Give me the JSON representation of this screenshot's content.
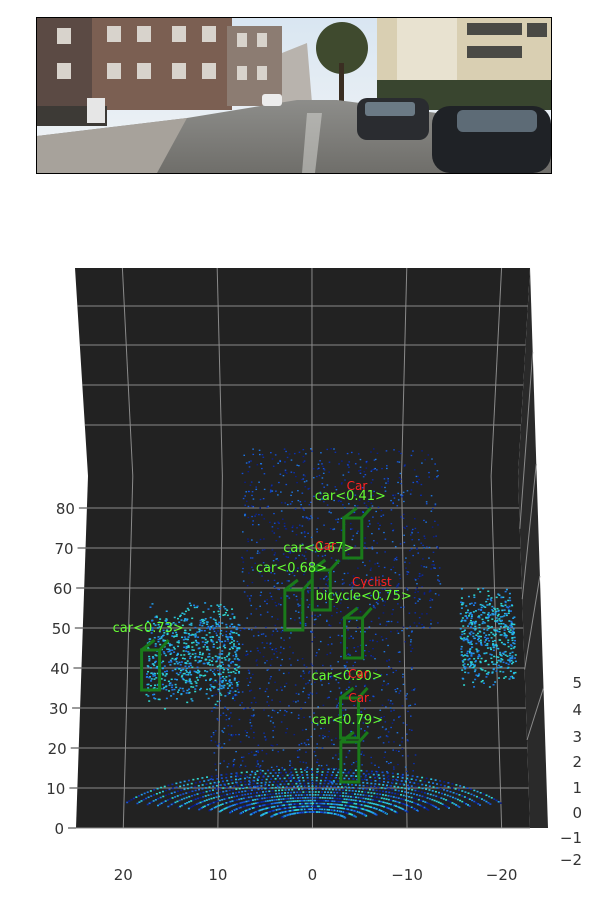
{
  "camera_image": {
    "description_icon": "street-scene-photo"
  },
  "chart_data": {
    "type": "scatter",
    "title": "",
    "xlabel": "",
    "ylabel": "",
    "zlabel": "",
    "x_ticks": [
      "20",
      "10",
      "0",
      "−10",
      "−20"
    ],
    "y_ticks": [
      "0",
      "10",
      "20",
      "30",
      "40",
      "50",
      "60",
      "70",
      "80"
    ],
    "z_ticks": [
      "−2",
      "−1",
      "0",
      "1",
      "2",
      "3",
      "4",
      "5"
    ],
    "xlim": [
      25,
      -23
    ],
    "ylim": [
      0,
      88
    ],
    "zlim": [
      -2,
      5
    ],
    "grid": true,
    "background_color": "#222222",
    "detection_color": "#1a7a1a",
    "detection_label_color": "#66ff33",
    "ground_truth_color": "#ff2222",
    "detections": [
      {
        "label": "car<0.41>",
        "x": -4.5,
        "y": 72
      },
      {
        "label": "car<0.67>",
        "x": -1.0,
        "y": 59
      },
      {
        "label": "car<0.68>",
        "x": 2.0,
        "y": 54
      },
      {
        "label": "bicycle<0.75>",
        "x": -4.5,
        "y": 47
      },
      {
        "label": "car<0.73>",
        "x": 17.5,
        "y": 39
      },
      {
        "label": "car<0.90>",
        "x": -4.0,
        "y": 27
      },
      {
        "label": "car<0.79>",
        "x": -4.0,
        "y": 16
      }
    ],
    "ground_truth": [
      {
        "label": "Car",
        "x": -4.5,
        "y": 75
      },
      {
        "label": "Car",
        "x": -1.0,
        "y": 60
      },
      {
        "label": "Cyclist",
        "x": -5.0,
        "y": 51
      },
      {
        "label": "Car",
        "x": -4.5,
        "y": 28
      },
      {
        "label": "Car",
        "x": -4.5,
        "y": 22
      }
    ]
  }
}
